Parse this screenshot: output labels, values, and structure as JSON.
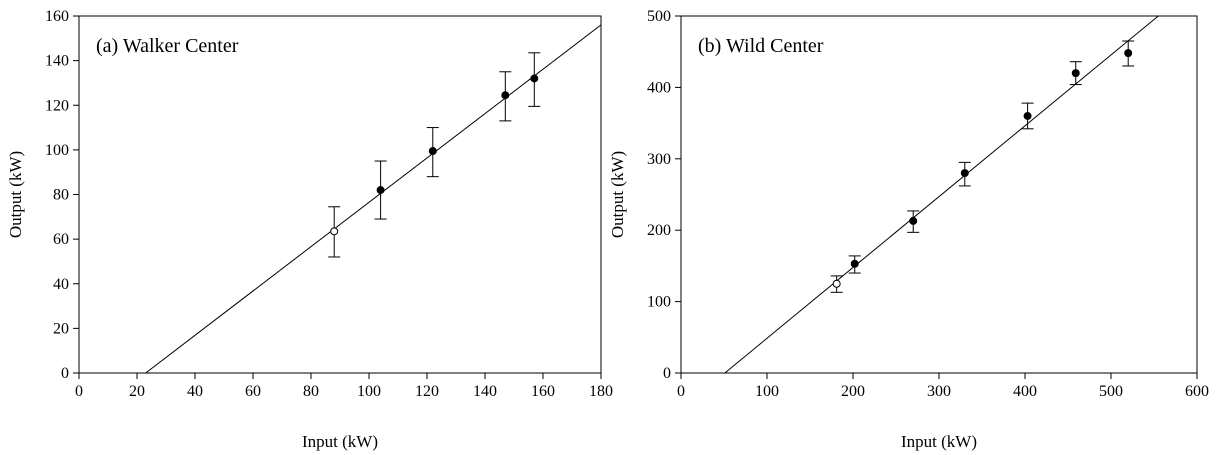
{
  "chart_data": [
    {
      "type": "scatter",
      "title": "(a) Walker Center",
      "xlabel": "Input (kW)",
      "ylabel": "Output (kW)",
      "xlim": [
        0,
        180
      ],
      "ylim": [
        0,
        160
      ],
      "xticks": [
        0,
        20,
        40,
        60,
        80,
        100,
        120,
        140,
        160,
        180
      ],
      "yticks": [
        0,
        20,
        40,
        60,
        80,
        100,
        120,
        140,
        160
      ],
      "grid": false,
      "points": [
        {
          "x": 88,
          "y": 63.5,
          "err_low": 52,
          "err_high": 74.5,
          "filled": false
        },
        {
          "x": 104,
          "y": 82,
          "err_low": 69,
          "err_high": 95,
          "filled": true
        },
        {
          "x": 122,
          "y": 99.5,
          "err_low": 88,
          "err_high": 110,
          "filled": true
        },
        {
          "x": 147,
          "y": 124.5,
          "err_low": 113,
          "err_high": 135,
          "filled": true
        },
        {
          "x": 157,
          "y": 132,
          "err_low": 119.5,
          "err_high": 143.5,
          "filled": true
        }
      ],
      "fit_line": {
        "x": [
          23,
          180
        ],
        "y": [
          0,
          156
        ]
      }
    },
    {
      "type": "scatter",
      "title": "(b) Wild Center",
      "xlabel": "Input (kW)",
      "ylabel": "Output (kW)",
      "xlim": [
        0,
        600
      ],
      "ylim": [
        0,
        500
      ],
      "xticks": [
        0,
        100,
        200,
        300,
        400,
        500,
        600
      ],
      "yticks": [
        0,
        100,
        200,
        300,
        400,
        500
      ],
      "grid": false,
      "points": [
        {
          "x": 181,
          "y": 125,
          "err_low": 113,
          "err_high": 136,
          "filled": false
        },
        {
          "x": 202,
          "y": 153,
          "err_low": 140,
          "err_high": 164,
          "filled": true
        },
        {
          "x": 270,
          "y": 213,
          "err_low": 197,
          "err_high": 227,
          "filled": true
        },
        {
          "x": 330,
          "y": 280,
          "err_low": 262,
          "err_high": 295,
          "filled": true
        },
        {
          "x": 403,
          "y": 360,
          "err_low": 342,
          "err_high": 378,
          "filled": true
        },
        {
          "x": 459,
          "y": 420,
          "err_low": 404,
          "err_high": 436,
          "filled": true
        },
        {
          "x": 520,
          "y": 448,
          "err_low": 430,
          "err_high": 465,
          "filled": true
        }
      ],
      "fit_line": {
        "x": [
          51,
          555
        ],
        "y": [
          0,
          500
        ]
      }
    }
  ]
}
